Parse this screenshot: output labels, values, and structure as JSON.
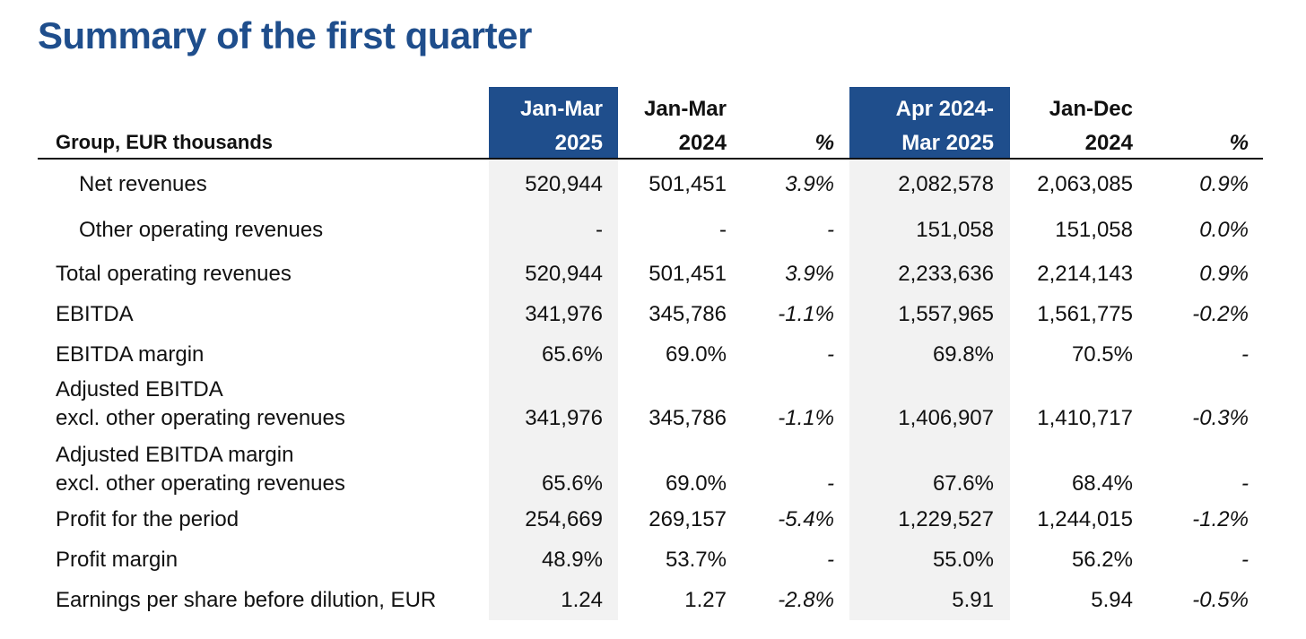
{
  "title": "Summary of the first quarter",
  "colors": {
    "accent": "#1f4e8c",
    "shade": "#f2f2f2",
    "text": "#111111"
  },
  "table": {
    "row_header": "Group, EUR thousands",
    "columns": [
      {
        "line1": "Jan-Mar",
        "line2": "2025",
        "highlight": true
      },
      {
        "line1": "Jan-Mar",
        "line2": "2024",
        "highlight": false
      },
      {
        "line1": "",
        "line2": "%",
        "highlight": false
      },
      {
        "line1": "Apr 2024-",
        "line2": "Mar 2025",
        "highlight": true
      },
      {
        "line1": "Jan-Dec",
        "line2": "2024",
        "highlight": false
      },
      {
        "line1": "",
        "line2": "%",
        "highlight": false
      }
    ],
    "rows": [
      {
        "label": "Net revenues",
        "indent": true,
        "values": [
          "520,944",
          "501,451",
          "3.9%",
          "2,082,578",
          "2,063,085",
          "0.9%"
        ]
      },
      {
        "label": "Other operating revenues",
        "indent": true,
        "values": [
          "-",
          "-",
          "-",
          "151,058",
          "151,058",
          "0.0%"
        ]
      },
      {
        "label": "Total operating revenues",
        "indent": false,
        "values": [
          "520,944",
          "501,451",
          "3.9%",
          "2,233,636",
          "2,214,143",
          "0.9%"
        ]
      },
      {
        "label": "EBITDA",
        "indent": false,
        "values": [
          "341,976",
          "345,786",
          "-1.1%",
          "1,557,965",
          "1,561,775",
          "-0.2%"
        ]
      },
      {
        "label": "EBITDA margin",
        "indent": false,
        "values": [
          "65.6%",
          "69.0%",
          "-",
          "69.8%",
          "70.5%",
          "-"
        ]
      },
      {
        "label_line1": "Adjusted EBITDA",
        "label": "excl. other operating revenues",
        "indent": false,
        "values": [
          "341,976",
          "345,786",
          "-1.1%",
          "1,406,907",
          "1,410,717",
          "-0.3%"
        ]
      },
      {
        "label_line1": "Adjusted EBITDA margin",
        "label": "excl. other operating revenues",
        "indent": false,
        "values": [
          "65.6%",
          "69.0%",
          "-",
          "67.6%",
          "68.4%",
          "-"
        ]
      },
      {
        "label": "Profit for the period",
        "indent": false,
        "values": [
          "254,669",
          "269,157",
          "-5.4%",
          "1,229,527",
          "1,244,015",
          "-1.2%"
        ]
      },
      {
        "label": "Profit margin",
        "indent": false,
        "values": [
          "48.9%",
          "53.7%",
          "-",
          "55.0%",
          "56.2%",
          "-"
        ]
      },
      {
        "label": "Earnings per share before dilution, EUR",
        "indent": false,
        "values": [
          "1.24",
          "1.27",
          "-2.8%",
          "5.91",
          "5.94",
          "-0.5%"
        ]
      }
    ]
  }
}
